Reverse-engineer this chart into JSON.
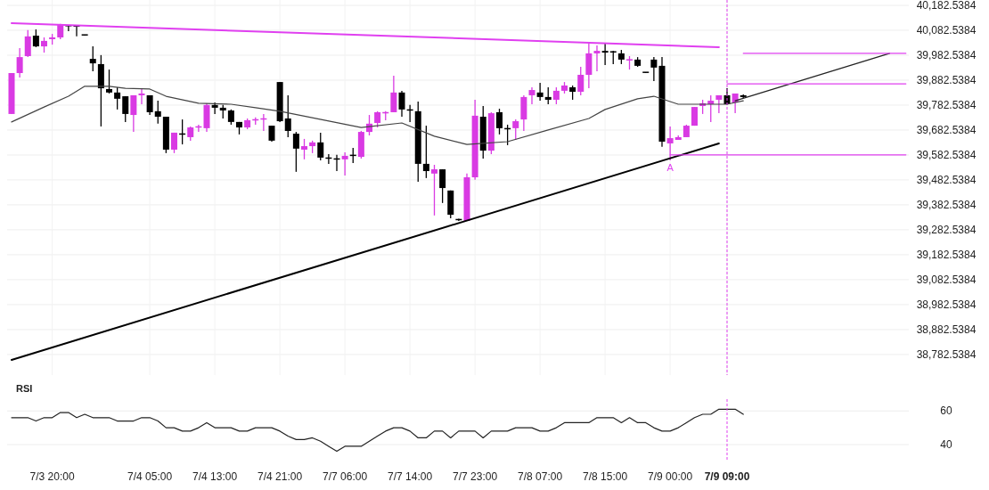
{
  "chart_data": [
    {
      "type": "candlestick",
      "categories": [
        null,
        null,
        null,
        null,
        null,
        "7/3 20:00",
        null,
        null,
        null,
        null,
        null,
        null,
        null,
        null,
        null,
        null,
        null,
        "7/4 05:00",
        null,
        null,
        null,
        null,
        null,
        null,
        null,
        "7/4 13:00",
        null,
        null,
        null,
        null,
        null,
        null,
        null,
        "7/4 21:00",
        null,
        null,
        null,
        null,
        null,
        null,
        null,
        "7/7 06:00",
        null,
        null,
        null,
        null,
        null,
        null,
        null,
        "7/7 14:00",
        null,
        null,
        null,
        null,
        null,
        null,
        null,
        "7/7 23:00",
        null,
        null,
        null,
        null,
        null,
        null,
        null,
        "7/8 07:00",
        null,
        null,
        null,
        null,
        null,
        null,
        null,
        "7/8 15:00",
        null,
        null,
        null,
        null,
        null,
        null,
        null,
        "7/9 00:00",
        null,
        null,
        null,
        null,
        null,
        null,
        "7/9 09:00",
        null,
        null,
        null,
        null,
        null,
        null,
        null,
        null,
        null,
        null,
        null,
        null,
        null,
        null,
        null,
        null,
        null,
        null,
        null,
        null,
        null,
        null
      ],
      "colors": [
        "#d93ae3",
        "#d93ae3",
        "#d93ae3",
        "#000000",
        "#d93ae3",
        "#d93ae3",
        "#d93ae3",
        "#000000",
        "#000000",
        "#000000",
        "#000000",
        "#000000",
        "#000000",
        "#000000",
        "#000000",
        "#d93ae3",
        "#d93ae3",
        "#000000",
        "#000000",
        "#000000",
        "#d93ae3",
        "#000000",
        "#d93ae3",
        "#d93ae3",
        "#d93ae3",
        "#000000",
        "#000000",
        "#000000",
        "#000000",
        "#d93ae3",
        "#d93ae3",
        "#d93ae3",
        "#000000",
        "#000000",
        "#000000",
        "#000000",
        "#d93ae3",
        "#d93ae3",
        "#000000",
        "#000000",
        "#000000",
        "#d93ae3",
        "#000000",
        "#d93ae3",
        "#d93ae3",
        "#d93ae3",
        "#d93ae3",
        "#d93ae3",
        "#000000",
        "#000000",
        "#000000",
        "#000000",
        "#d93ae3",
        "#000000",
        "#000000",
        "#000000",
        "#d93ae3",
        "#d93ae3",
        "#000000",
        "#d93ae3",
        "#000000",
        "#000000",
        "#d93ae3",
        "#d93ae3",
        "#d93ae3",
        "#000000",
        "#000000",
        "#d93ae3",
        "#d93ae3",
        "#000000",
        "#d93ae3",
        "#d93ae3",
        "#d93ae3",
        "#000000",
        "#000000",
        "#000000",
        "#d93ae3",
        "#000000",
        "#000000",
        "#000000",
        "#000000",
        "#d93ae3",
        "#d93ae3",
        "#d93ae3",
        "#d93ae3",
        "#d93ae3",
        "#d93ae3",
        "#d93ae3",
        "#000000",
        "#d93ae3",
        "#000000",
        null,
        null,
        null,
        null,
        null,
        null,
        null,
        null,
        null,
        null,
        null,
        null,
        null,
        null,
        null,
        null,
        null,
        null,
        null,
        null
      ],
      "ohlc": [
        [
          39747,
          39911,
          39747,
          39911
        ],
        [
          39911,
          40011,
          39893,
          39975
        ],
        [
          39979,
          40083,
          39975,
          40058
        ],
        [
          40061,
          40086,
          40015,
          40018
        ],
        [
          40018,
          40054,
          39993,
          40040
        ],
        [
          40047,
          40068,
          40025,
          40054
        ],
        [
          40054,
          40108,
          40047,
          40104
        ],
        [
          40102,
          40104,
          40079,
          40100
        ],
        [
          40100,
          40100,
          40058,
          40099
        ],
        [
          40065,
          40065,
          40061,
          40063
        ],
        [
          39968,
          40018,
          39918,
          39950
        ],
        [
          39947,
          39983,
          39697,
          39850
        ],
        [
          39847,
          39925,
          39829,
          39833
        ],
        [
          39833,
          39854,
          39765,
          39808
        ],
        [
          39818,
          39818,
          39715,
          39747
        ],
        [
          39743,
          39822,
          39675,
          39822
        ],
        [
          39822,
          39847,
          39786,
          39829
        ],
        [
          39822,
          39822,
          39743,
          39754
        ],
        [
          39758,
          39800,
          39708,
          39736
        ],
        [
          39736,
          39736,
          39590,
          39604
        ],
        [
          39604,
          39672,
          39590,
          39672
        ],
        [
          39668,
          39725,
          39625,
          39665
        ],
        [
          39654,
          39697,
          39640,
          39693
        ],
        [
          39693,
          39704,
          39675,
          39697
        ],
        [
          39690,
          39790,
          39675,
          39783
        ],
        [
          39783,
          39793,
          39747,
          39772
        ],
        [
          39772,
          39783,
          39729,
          39761
        ],
        [
          39761,
          39765,
          39704,
          39715
        ],
        [
          39715,
          39715,
          39665,
          39693
        ],
        [
          39693,
          39729,
          39686,
          39722
        ],
        [
          39722,
          39733,
          39704,
          39725
        ],
        [
          39725,
          39747,
          39679,
          39729
        ],
        [
          39700,
          39700,
          39636,
          39640
        ],
        [
          39875,
          39875,
          39715,
          39718
        ],
        [
          39729,
          39822,
          39654,
          39679
        ],
        [
          39668,
          39675,
          39515,
          39608
        ],
        [
          39604,
          39647,
          39565,
          39618
        ],
        [
          39618,
          39640,
          39590,
          39633
        ],
        [
          39633,
          39672,
          39561,
          39572
        ],
        [
          39572,
          39586,
          39547,
          39568
        ],
        [
          39568,
          39583,
          39518,
          39565
        ],
        [
          39565,
          39593,
          39500,
          39579
        ],
        [
          39583,
          39611,
          39550,
          39579
        ],
        [
          39575,
          39679,
          39568,
          39675
        ],
        [
          39675,
          39743,
          39661,
          39708
        ],
        [
          39711,
          39758,
          39693,
          39754
        ],
        [
          39750,
          39758,
          39722,
          39754
        ],
        [
          39754,
          39900,
          39754,
          39833
        ],
        [
          39833,
          39840,
          39736,
          39765
        ],
        [
          39765,
          39783,
          39715,
          39761
        ],
        [
          39758,
          39797,
          39475,
          39547
        ],
        [
          39547,
          39700,
          39490,
          39518
        ],
        [
          39508,
          39543,
          39340,
          39525
        ],
        [
          39525,
          39525,
          39390,
          39450
        ],
        [
          39440,
          39440,
          39329,
          39343
        ],
        [
          39325,
          39327,
          39318,
          39322
        ],
        [
          39318,
          39508,
          39318,
          39493
        ],
        [
          39493,
          39804,
          39483,
          39740
        ],
        [
          39736,
          39779,
          39568,
          39600
        ],
        [
          39600,
          39754,
          39586,
          39750
        ],
        [
          39754,
          39768,
          39665,
          39690
        ],
        [
          39690,
          39704,
          39622,
          39686
        ],
        [
          39690,
          39725,
          39643,
          39718
        ],
        [
          39725,
          39822,
          39679,
          39815
        ],
        [
          39822,
          39854,
          39786,
          39843
        ],
        [
          39833,
          39872,
          39800,
          39815
        ],
        [
          39815,
          39854,
          39786,
          39804
        ],
        [
          39804,
          39854,
          39786,
          39840
        ],
        [
          39840,
          39875,
          39829,
          39861
        ],
        [
          39854,
          39861,
          39804,
          39836
        ],
        [
          39836,
          39936,
          39822,
          39904
        ],
        [
          39904,
          40029,
          39850,
          39990
        ],
        [
          39990,
          40022,
          39918,
          40000
        ],
        [
          40000,
          40029,
          39943,
          39993
        ],
        [
          39997,
          40000,
          39947,
          39995
        ],
        [
          39990,
          40004,
          39947,
          39965
        ],
        [
          39963,
          39979,
          39925,
          39965
        ],
        [
          39965,
          39975,
          39936,
          39940
        ],
        [
          39915,
          39915,
          39911,
          39913
        ],
        [
          39965,
          39975,
          39879,
          39933
        ],
        [
          39940,
          39975,
          39615,
          39636
        ],
        [
          39629,
          39697,
          39561,
          39650
        ],
        [
          39643,
          39661,
          39643,
          39654
        ],
        [
          39654,
          39704,
          39654,
          39700
        ],
        [
          39700,
          39775,
          39700,
          39775
        ],
        [
          39779,
          39804,
          39747,
          39790
        ],
        [
          39786,
          39822,
          39715,
          39800
        ],
        [
          39804,
          39822,
          39750,
          39822
        ],
        [
          39822,
          39850,
          39783,
          39786
        ],
        [
          39793,
          39829,
          39750,
          39829
        ],
        [
          39822,
          39825,
          39811,
          39815
        ],
        null,
        null,
        null,
        null,
        null,
        null,
        null,
        null,
        null,
        null,
        null,
        null,
        null,
        null,
        null,
        null,
        null,
        null,
        null,
        null
      ],
      "series": [
        {
          "type": "line",
          "color": "#444444",
          "values": [
            39715,
            null,
            null,
            null,
            39775,
            null,
            null,
            39818,
            null,
            39858,
            null,
            null,
            39858,
            null,
            39850,
            null,
            null,
            39847,
            null,
            39818,
            null,
            null,
            null,
            39790,
            null,
            null,
            null,
            39786,
            null,
            null,
            39772,
            null,
            null,
            39758,
            null,
            null,
            null,
            null,
            null,
            null,
            null,
            null,
            null,
            39693,
            null,
            null,
            null,
            null,
            39711,
            null,
            null,
            null,
            39658,
            null,
            null,
            null,
            39625,
            null,
            null,
            null,
            null,
            39636,
            null,
            null,
            null,
            null,
            39683,
            null,
            null,
            null,
            null,
            39729,
            null,
            39765,
            null,
            null,
            null,
            39808,
            null,
            39818,
            null,
            null,
            39786,
            null,
            null,
            39786,
            null,
            null,
            39786,
            null,
            39800,
            null,
            null,
            null,
            null,
            null,
            null,
            null,
            null,
            null,
            null,
            null,
            null,
            null,
            null,
            null,
            null,
            null,
            null,
            null,
            null
          ]
        },
        {
          "type": "line",
          "color": "#e040f0",
          "values": [
            40111,
            null,
            null,
            null,
            null,
            null,
            null,
            null,
            null,
            null,
            null,
            null,
            null,
            null,
            null,
            null,
            null,
            null,
            null,
            null,
            null,
            null,
            null,
            null,
            null,
            null,
            null,
            null,
            null,
            null,
            null,
            null,
            null,
            null,
            null,
            null,
            null,
            null,
            null,
            null,
            null,
            null,
            null,
            null,
            null,
            null,
            null,
            null,
            null,
            null,
            null,
            null,
            null,
            null,
            null,
            null,
            null,
            null,
            null,
            null,
            null,
            null,
            null,
            null,
            null,
            null,
            null,
            null,
            null,
            null,
            null,
            null,
            null,
            null,
            null,
            null,
            null,
            null,
            null,
            null,
            null,
            null,
            null,
            null,
            null,
            null,
            null,
            40015,
            null,
            null,
            null,
            null,
            null,
            null,
            null,
            null,
            null,
            null,
            null,
            null,
            null,
            null,
            null,
            null,
            null,
            null,
            null,
            null,
            null,
            null,
            null
          ]
        },
        {
          "type": "line",
          "color": "#000000",
          "values": [
            38761,
            null,
            null,
            null,
            null,
            null,
            null,
            null,
            null,
            null,
            null,
            null,
            null,
            null,
            null,
            null,
            null,
            null,
            null,
            null,
            null,
            null,
            null,
            null,
            null,
            null,
            null,
            null,
            null,
            null,
            null,
            null,
            null,
            null,
            null,
            null,
            null,
            null,
            null,
            null,
            null,
            null,
            null,
            null,
            null,
            null,
            null,
            null,
            null,
            null,
            null,
            null,
            null,
            null,
            null,
            null,
            null,
            null,
            null,
            null,
            null,
            null,
            null,
            null,
            null,
            null,
            null,
            null,
            null,
            null,
            null,
            null,
            null,
            null,
            null,
            null,
            null,
            null,
            null,
            null,
            null,
            null,
            null,
            null,
            null,
            null,
            null,
            39629,
            null,
            null,
            null,
            null,
            null,
            null,
            null,
            null,
            null,
            null,
            null,
            null,
            null,
            null,
            null,
            null,
            null,
            null,
            null,
            null,
            null,
            null,
            null
          ]
        },
        {
          "type": "line",
          "color": "#222222",
          "values": [
            null,
            null,
            null,
            null,
            null,
            null,
            null,
            null,
            null,
            null,
            null,
            null,
            null,
            null,
            null,
            null,
            null,
            null,
            null,
            null,
            null,
            null,
            null,
            null,
            null,
            null,
            null,
            null,
            null,
            null,
            null,
            null,
            null,
            null,
            null,
            null,
            null,
            null,
            null,
            null,
            null,
            null,
            null,
            null,
            null,
            null,
            null,
            null,
            null,
            null,
            null,
            null,
            null,
            null,
            null,
            null,
            null,
            null,
            null,
            null,
            null,
            null,
            null,
            null,
            null,
            null,
            null,
            null,
            null,
            null,
            null,
            null,
            null,
            null,
            null,
            null,
            null,
            null,
            null,
            null,
            null,
            null,
            null,
            null,
            null,
            null,
            null,
            null,
            null,
            39800,
            null,
            null,
            null,
            null,
            null,
            null,
            null,
            null,
            null,
            null,
            null,
            null,
            null,
            null,
            null,
            null,
            null,
            null,
            39990,
            null,
            null
          ]
        },
        {
          "type": "line",
          "color": "#e040f0",
          "values": [
            null,
            null,
            null,
            null,
            null,
            null,
            null,
            null,
            null,
            null,
            null,
            null,
            null,
            null,
            null,
            null,
            null,
            null,
            null,
            null,
            null,
            null,
            null,
            null,
            null,
            null,
            null,
            null,
            null,
            null,
            null,
            null,
            null,
            null,
            null,
            null,
            null,
            null,
            null,
            null,
            null,
            null,
            null,
            null,
            null,
            null,
            null,
            null,
            null,
            null,
            null,
            null,
            null,
            null,
            null,
            null,
            null,
            null,
            null,
            null,
            null,
            null,
            null,
            null,
            null,
            null,
            null,
            null,
            null,
            null,
            null,
            null,
            null,
            null,
            null,
            null,
            null,
            null,
            null,
            null,
            null,
            null,
            null,
            null,
            null,
            null,
            null,
            null,
            null,
            null,
            39990,
            null,
            null,
            null,
            null,
            null,
            null,
            null,
            null,
            null,
            null,
            null,
            null,
            null,
            null,
            null,
            null,
            null,
            null,
            null,
            39990
          ]
        },
        {
          "type": "line",
          "color": "#e040f0",
          "values": [
            null,
            null,
            null,
            null,
            null,
            null,
            null,
            null,
            null,
            null,
            null,
            null,
            null,
            null,
            null,
            null,
            null,
            null,
            null,
            null,
            null,
            null,
            null,
            null,
            null,
            null,
            null,
            null,
            null,
            null,
            null,
            null,
            null,
            null,
            null,
            null,
            null,
            null,
            null,
            null,
            null,
            null,
            null,
            null,
            null,
            null,
            null,
            null,
            null,
            null,
            null,
            null,
            null,
            null,
            null,
            null,
            null,
            null,
            null,
            null,
            null,
            null,
            null,
            null,
            null,
            null,
            null,
            null,
            null,
            null,
            null,
            null,
            null,
            null,
            null,
            null,
            null,
            null,
            null,
            null,
            null,
            null,
            null,
            null,
            null,
            null,
            null,
            null,
            39868,
            null,
            null,
            null,
            null,
            null,
            null,
            null,
            null,
            null,
            null,
            null,
            null,
            null,
            null,
            null,
            null,
            null,
            null,
            null,
            null,
            null,
            39868
          ]
        },
        {
          "type": "line",
          "color": "#e040f0",
          "values": [
            null,
            null,
            null,
            null,
            null,
            null,
            null,
            null,
            null,
            null,
            null,
            null,
            null,
            null,
            null,
            null,
            null,
            null,
            null,
            null,
            null,
            null,
            null,
            null,
            null,
            null,
            null,
            null,
            null,
            null,
            null,
            null,
            null,
            null,
            null,
            null,
            null,
            null,
            null,
            null,
            null,
            null,
            null,
            null,
            null,
            null,
            null,
            null,
            null,
            null,
            null,
            null,
            null,
            null,
            null,
            null,
            null,
            null,
            null,
            null,
            null,
            null,
            null,
            null,
            null,
            null,
            null,
            null,
            null,
            null,
            null,
            null,
            null,
            null,
            null,
            null,
            null,
            null,
            null,
            null,
            null,
            39583,
            null,
            null,
            null,
            null,
            null,
            null,
            null,
            null,
            null,
            null,
            null,
            null,
            null,
            null,
            null,
            null,
            null,
            null,
            null,
            null,
            null,
            null,
            null,
            null,
            null,
            null,
            null,
            null,
            39583
          ]
        }
      ],
      "ylim": [
        38700,
        40204
      ],
      "yticks": [
        {
          "value": 40182.5384,
          "label": "40,182.5384"
        },
        {
          "value": 40082.5384,
          "label": "40,082.5384"
        },
        {
          "value": 39982.5384,
          "label": "39,982.5384"
        },
        {
          "value": 39882.5384,
          "label": "39,882.5384"
        },
        {
          "value": 39782.5384,
          "label": "39,782.5384"
        },
        {
          "value": 39682.5384,
          "label": "39,682.5384"
        },
        {
          "value": 39582.5384,
          "label": "39,582.5384"
        },
        {
          "value": 39482.5384,
          "label": "39,482.5384"
        },
        {
          "value": 39382.5384,
          "label": "39,382.5384"
        },
        {
          "value": 39282.5384,
          "label": "39,282.5384"
        },
        {
          "value": 39182.5384,
          "label": "39,182.5384"
        },
        {
          "value": 39082.5384,
          "label": "39,082.5384"
        },
        {
          "value": 38982.5384,
          "label": "38,982.5384"
        },
        {
          "value": 38882.5384,
          "label": "38,882.5384"
        },
        {
          "value": 38782.5384,
          "label": "38,782.5384"
        }
      ],
      "grid": true,
      "tick_labels": "y",
      "ref_lines": [
        {
          "axis": "x",
          "value": "7/9 09:00",
          "color": "#e040f0",
          "line_style": "dashed"
        }
      ],
      "annotations": [
        {
          "text": "A",
          "x": "7/9 00:00",
          "y": 39561
        }
      ]
    },
    {
      "type": "line",
      "title": "RSI",
      "categories": [
        null,
        null,
        null,
        null,
        null,
        "7/3 20:00",
        null,
        null,
        null,
        null,
        null,
        null,
        null,
        null,
        null,
        null,
        null,
        "7/4 05:00",
        null,
        null,
        null,
        null,
        null,
        null,
        null,
        "7/4 13:00",
        null,
        null,
        null,
        null,
        null,
        null,
        null,
        "7/4 21:00",
        null,
        null,
        null,
        null,
        null,
        null,
        null,
        "7/7 06:00",
        null,
        null,
        null,
        null,
        null,
        null,
        null,
        "7/7 14:00",
        null,
        null,
        null,
        null,
        null,
        null,
        null,
        "7/7 23:00",
        null,
        null,
        null,
        null,
        null,
        null,
        null,
        "7/8 07:00",
        null,
        null,
        null,
        null,
        null,
        null,
        null,
        "7/8 15:00",
        null,
        null,
        null,
        null,
        null,
        null,
        null,
        "7/9 00:00",
        null,
        null,
        null,
        null,
        null,
        null,
        "7/9 09:00",
        null,
        null,
        null,
        null,
        null,
        null,
        null,
        null,
        null,
        null,
        null,
        null,
        null,
        null,
        null,
        null,
        null,
        null,
        null,
        null,
        null,
        null
      ],
      "color": "#222222",
      "values": [
        56,
        56,
        56,
        54,
        56,
        56,
        59,
        59,
        56,
        58,
        56,
        56,
        56,
        54,
        54,
        54,
        56,
        56,
        54,
        50,
        50,
        48,
        48,
        50,
        53,
        50,
        50,
        50,
        48,
        48,
        50,
        50,
        50,
        48,
        45,
        43,
        43,
        44,
        42,
        39,
        36,
        39,
        39,
        39,
        42,
        45,
        48,
        50,
        50,
        48,
        44,
        44,
        48,
        48,
        44,
        48,
        48,
        48,
        44,
        48,
        48,
        48,
        50,
        50,
        50,
        48,
        48,
        50,
        53,
        53,
        53,
        53,
        56,
        56,
        56,
        53,
        56,
        53,
        53,
        50,
        48,
        48,
        50,
        53,
        56,
        58,
        58,
        61,
        61,
        61,
        58,
        null,
        null,
        null,
        null,
        null,
        null,
        null,
        null,
        null,
        null,
        null,
        null,
        null,
        null,
        null,
        null,
        null,
        null,
        null,
        null
      ],
      "ylim": [
        31,
        67
      ],
      "yticks": [
        40,
        60
      ],
      "grid": "y",
      "ref_lines": [
        {
          "axis": "x",
          "value": "7/9 09:00",
          "color": "#e040f0",
          "line_style": "dashed"
        }
      ]
    }
  ]
}
